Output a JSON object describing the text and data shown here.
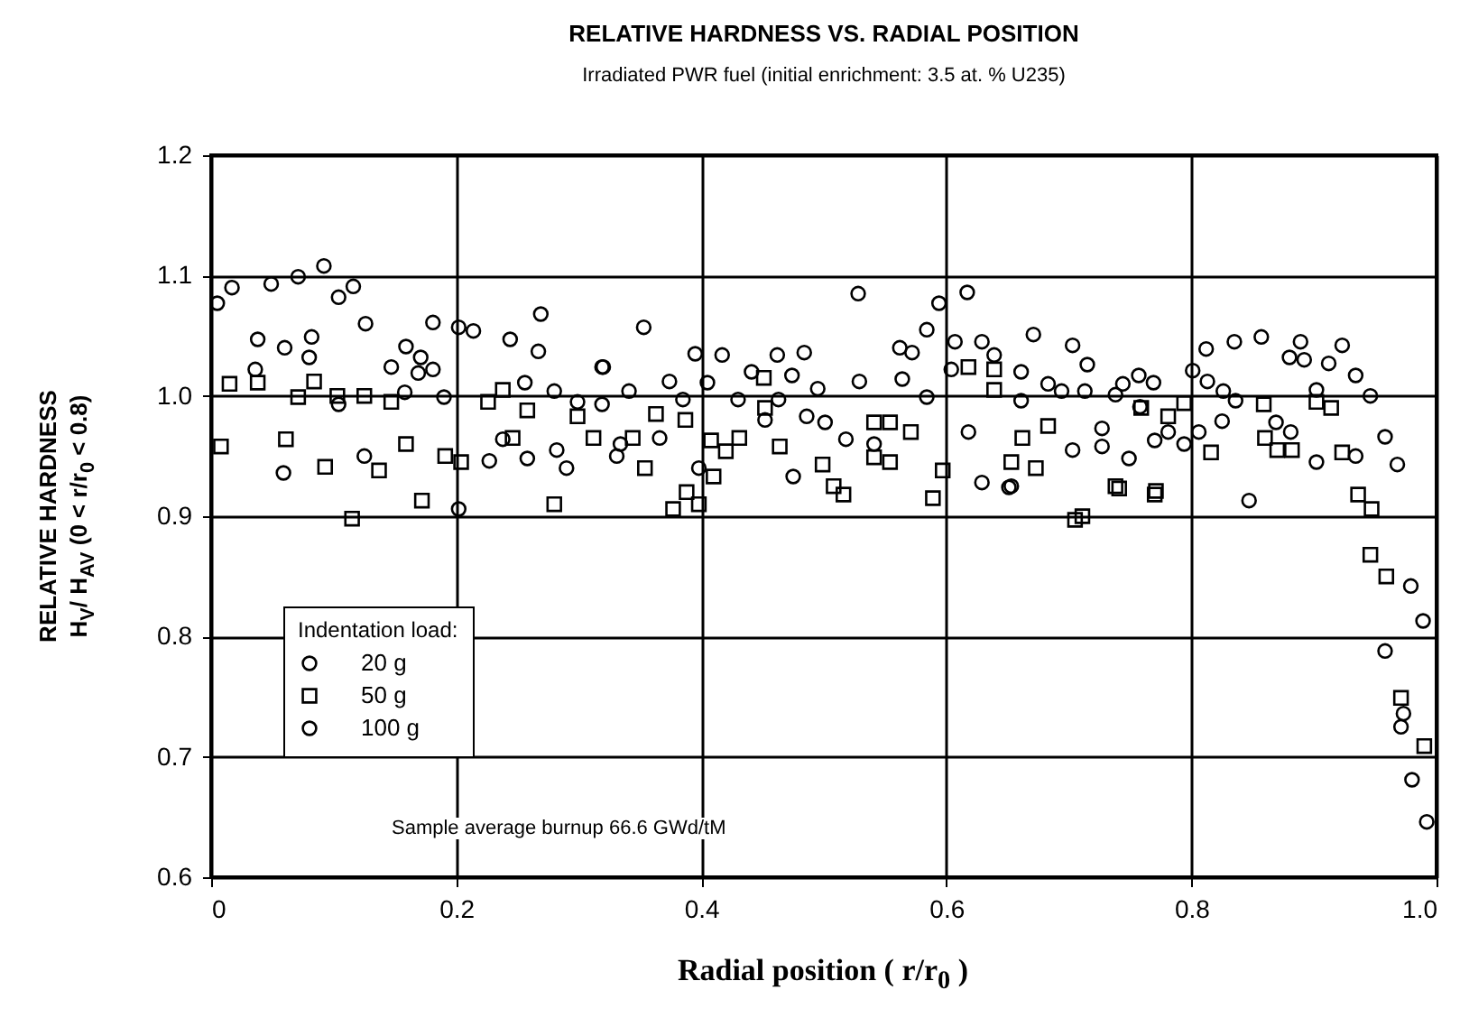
{
  "chart_data": {
    "type": "scatter",
    "title": "RELATIVE HARDNESS VS. RADIAL POSITION",
    "subtitle": "Irradiated PWR fuel (initial enrichment: 3.5 at. % U235)",
    "xlabel": "Radial position ( r/r$_{0}$ )",
    "ylabel": "RELATIVE HARDNESS\nH$_{V}$/ H$_{AV}$ (0 < r/r$_{0}$ < 0.8)",
    "legend_title": "Indentation load:",
    "legend": "bottom left",
    "grid": true,
    "annotations": [
      "Sample average burnup  66.6 GWd/tM"
    ],
    "xlim": [
      0,
      1
    ],
    "xticks": [
      0,
      0.2,
      0.4,
      0.6,
      0.8,
      {
        "value": 1,
        "label": "1.0"
      }
    ],
    "ylim": [
      0.6,
      1.2
    ],
    "yticks": [
      0.6,
      0.7,
      0.8,
      0.9,
      {
        "value": 1,
        "label": "1.0"
      },
      1.1,
      1.2
    ],
    "series": [
      {
        "name": "20 g",
        "color": "#000000",
        "marker": "circle",
        "x": [
          0.005,
          0.017,
          0.049,
          0.071,
          0.092,
          0.104,
          0.116,
          0.126,
          0.181,
          0.202,
          0.214,
          0.038,
          0.06,
          0.082,
          0.159,
          0.147,
          0.169,
          0.269,
          0.256,
          0.28,
          0.319,
          0.227,
          0.353,
          0.32,
          0.417,
          0.462,
          0.484,
          0.474,
          0.529,
          0.564,
          0.584,
          0.607,
          0.661,
          0.463,
          0.486,
          0.366,
          0.334,
          0.398,
          0.475,
          0.618,
          0.629,
          0.651,
          0.703,
          0.715,
          0.683,
          0.694,
          0.738,
          0.758,
          0.757,
          0.77,
          0.794,
          0.806,
          0.813,
          0.826,
          0.836,
          0.727,
          0.749,
          0.881,
          0.902,
          0.934,
          0.892,
          0.923,
          0.653,
          0.958,
          0.973,
          0.971,
          0.98,
          0.992
        ],
        "values": [
          1.077,
          1.09,
          1.093,
          1.099,
          1.108,
          1.082,
          1.091,
          1.06,
          1.061,
          1.057,
          1.054,
          1.047,
          1.04,
          1.049,
          1.041,
          1.024,
          1.019,
          1.068,
          1.011,
          1.004,
          1.024,
          0.946,
          1.057,
          1.024,
          1.034,
          1.034,
          1.036,
          1.017,
          1.012,
          1.014,
          1.055,
          1.045,
          0.996,
          0.997,
          0.983,
          0.965,
          0.96,
          0.94,
          0.933,
          0.97,
          0.928,
          0.924,
          1.042,
          1.026,
          1.01,
          1.004,
          1.001,
          0.991,
          1.017,
          0.963,
          0.96,
          0.97,
          1.012,
          1.004,
          0.996,
          0.958,
          0.948,
          0.97,
          0.945,
          0.95,
          1.03,
          1.042,
          0.925,
          0.788,
          0.736,
          0.725,
          0.681,
          0.646
        ]
      },
      {
        "name": "50 g",
        "color": "#000000",
        "marker": "square",
        "x": [
          0.015,
          0.038,
          0.084,
          0.071,
          0.103,
          0.125,
          0.147,
          0.008,
          0.061,
          0.093,
          0.137,
          0.159,
          0.191,
          0.204,
          0.226,
          0.238,
          0.258,
          0.299,
          0.246,
          0.312,
          0.363,
          0.387,
          0.344,
          0.354,
          0.408,
          0.431,
          0.42,
          0.41,
          0.464,
          0.451,
          0.452,
          0.541,
          0.554,
          0.571,
          0.541,
          0.554,
          0.499,
          0.597,
          0.618,
          0.639,
          0.639,
          0.653,
          0.388,
          0.508,
          0.516,
          0.589,
          0.662,
          0.673,
          0.683,
          0.759,
          0.781,
          0.794,
          0.816,
          0.859,
          0.86,
          0.87,
          0.882,
          0.902,
          0.914,
          0.923,
          0.738,
          0.771,
          0.711,
          0.705,
          0.741,
          0.77,
          0.936,
          0.947,
          0.946,
          0.959,
          0.971,
          0.99,
          0.115,
          0.172,
          0.28,
          0.377,
          0.398
        ],
        "values": [
          1.01,
          1.011,
          1.012,
          0.999,
          1.0,
          1.0,
          0.995,
          0.958,
          0.964,
          0.941,
          0.938,
          0.96,
          0.95,
          0.945,
          0.995,
          1.005,
          0.988,
          0.983,
          0.965,
          0.965,
          0.985,
          0.98,
          0.965,
          0.94,
          0.963,
          0.965,
          0.954,
          0.933,
          0.958,
          1.015,
          0.99,
          0.978,
          0.978,
          0.97,
          0.949,
          0.945,
          0.943,
          0.938,
          1.024,
          1.022,
          1.005,
          0.945,
          0.92,
          0.925,
          0.918,
          0.915,
          0.965,
          0.94,
          0.975,
          0.99,
          0.983,
          0.994,
          0.953,
          0.993,
          0.965,
          0.955,
          0.955,
          0.995,
          0.99,
          0.953,
          0.925,
          0.921,
          0.9,
          0.897,
          0.923,
          0.918,
          0.918,
          0.906,
          0.868,
          0.85,
          0.749,
          0.709,
          0.898,
          0.913,
          0.91,
          0.906,
          0.91
        ]
      },
      {
        "name": "100 g",
        "color": "#000000",
        "marker": "circle",
        "x": [
          0.036,
          0.08,
          0.059,
          0.104,
          0.125,
          0.158,
          0.171,
          0.181,
          0.19,
          0.244,
          0.267,
          0.238,
          0.258,
          0.282,
          0.29,
          0.299,
          0.528,
          0.594,
          0.617,
          0.395,
          0.341,
          0.374,
          0.385,
          0.405,
          0.43,
          0.441,
          0.495,
          0.562,
          0.572,
          0.584,
          0.629,
          0.639,
          0.604,
          0.331,
          0.452,
          0.501,
          0.518,
          0.541,
          0.319,
          0.671,
          0.661,
          0.713,
          0.744,
          0.769,
          0.801,
          0.812,
          0.835,
          0.857,
          0.889,
          0.88,
          0.912,
          0.934,
          0.902,
          0.946,
          0.727,
          0.703,
          0.781,
          0.825,
          0.869,
          0.958,
          0.968,
          0.847,
          0.979,
          0.989,
          0.202
        ],
        "values": [
          1.022,
          1.032,
          0.936,
          0.993,
          0.95,
          1.003,
          1.032,
          1.022,
          0.999,
          1.047,
          1.037,
          0.964,
          0.948,
          0.955,
          0.94,
          0.995,
          1.085,
          1.077,
          1.086,
          1.035,
          1.004,
          1.012,
          0.997,
          1.011,
          0.997,
          1.02,
          1.006,
          1.04,
          1.036,
          0.999,
          1.045,
          1.034,
          1.022,
          0.95,
          0.98,
          0.978,
          0.964,
          0.96,
          0.993,
          1.051,
          1.02,
          1.004,
          1.01,
          1.011,
          1.021,
          1.039,
          1.045,
          1.049,
          1.045,
          1.032,
          1.027,
          1.017,
          1.005,
          1.0,
          0.973,
          0.955,
          0.97,
          0.979,
          0.978,
          0.966,
          0.943,
          0.913,
          0.842,
          0.813,
          0.906
        ]
      }
    ]
  }
}
